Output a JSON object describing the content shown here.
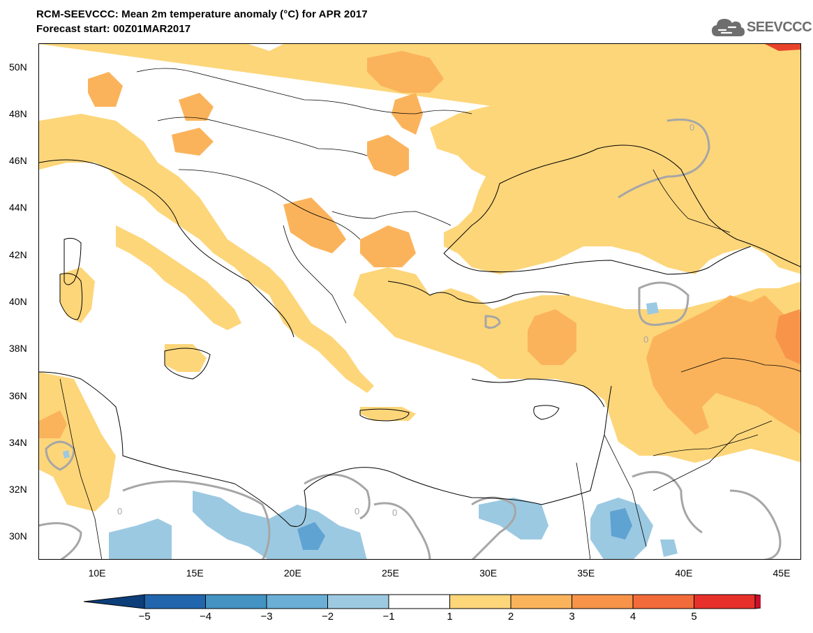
{
  "header": {
    "title": "RCM-SEEVCCC: Mean 2m temperature anomaly (°C) for APR 2017",
    "subtitle": "Forecast start: 00Z01MAR2017",
    "logo_text": "SEEVCCC",
    "logo_icon": "cloud-icon"
  },
  "map": {
    "lon_range": [
      7,
      46
    ],
    "lat_range": [
      29,
      51
    ],
    "lat_ticks": [
      {
        "value": 50,
        "label": "50N"
      },
      {
        "value": 48,
        "label": "48N"
      },
      {
        "value": 46,
        "label": "46N"
      },
      {
        "value": 44,
        "label": "44N"
      },
      {
        "value": 42,
        "label": "42N"
      },
      {
        "value": 40,
        "label": "40N"
      },
      {
        "value": 38,
        "label": "38N"
      },
      {
        "value": 36,
        "label": "36N"
      },
      {
        "value": 34,
        "label": "34N"
      },
      {
        "value": 32,
        "label": "32N"
      },
      {
        "value": 30,
        "label": "30N"
      }
    ],
    "lon_ticks": [
      {
        "value": 10,
        "label": "10E"
      },
      {
        "value": 15,
        "label": "15E"
      },
      {
        "value": 20,
        "label": "20E"
      },
      {
        "value": 25,
        "label": "25E"
      },
      {
        "value": 30,
        "label": "30E"
      },
      {
        "value": 35,
        "label": "35E"
      },
      {
        "value": 40,
        "label": "40E"
      },
      {
        "value": 45,
        "label": "45E"
      }
    ],
    "contour_label": "0",
    "colors": {
      "warm1": "#fdd67a",
      "warm2": "#fbb35b",
      "warm3": "#f7944a",
      "warm5": "#e8432a",
      "cool1": "#9cc9e2",
      "cool2": "#5fa3d3",
      "zero_contour": "#a6a6a6"
    }
  },
  "colorbar": {
    "labels": [
      "−5",
      "−4",
      "−3",
      "−2",
      "−1",
      "1",
      "2",
      "3",
      "4",
      "5"
    ],
    "colors": [
      "#0c3e7a",
      "#2166ac",
      "#4393c3",
      "#6baed6",
      "#9ecae1",
      "#ffffff",
      "#fdd67a",
      "#fbb35b",
      "#f7944a",
      "#f26b3a",
      "#e8302a",
      "#c8102e"
    ]
  }
}
